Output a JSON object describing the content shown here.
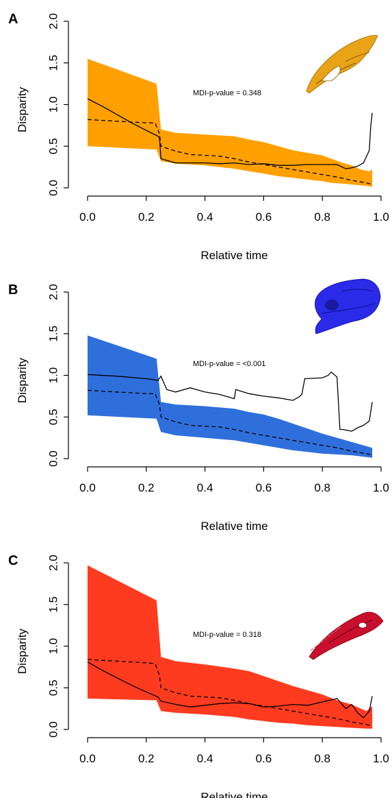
{
  "chart_data": [
    {
      "type": "line",
      "panel": "A",
      "xlabel": "Relative time",
      "ylabel": "Disparity",
      "xlim": [
        0,
        1
      ],
      "ylim": [
        0,
        2
      ],
      "xticks": [
        0.0,
        0.2,
        0.4,
        0.6,
        0.8,
        1.0
      ],
      "yticks": [
        0.0,
        0.5,
        1.0,
        1.5,
        2.0
      ],
      "xtick_labels": [
        "0.0",
        "0.2",
        "0.4",
        "0.6",
        "0.8",
        "1.0"
      ],
      "ytick_labels": [
        "0.0",
        "0.5",
        "1.0",
        "1.5",
        "2.0"
      ],
      "annotation": "MDI-p-value = 0.348",
      "band_color": "#FFA000",
      "skull_color": "#E8A317",
      "band": {
        "x": [
          0.0,
          0.235,
          0.25,
          0.3,
          0.4,
          0.5,
          0.55,
          0.6,
          0.65,
          0.7,
          0.75,
          0.8,
          0.83,
          0.87,
          0.9,
          0.93,
          0.96,
          0.97
        ],
        "upper": [
          1.55,
          1.25,
          0.7,
          0.66,
          0.64,
          0.62,
          0.58,
          0.55,
          0.5,
          0.45,
          0.42,
          0.39,
          0.35,
          0.3,
          0.27,
          0.22,
          0.2,
          0.22
        ],
        "lower": [
          0.5,
          0.46,
          0.32,
          0.29,
          0.27,
          0.23,
          0.2,
          0.17,
          0.14,
          0.12,
          0.1,
          0.08,
          0.06,
          0.05,
          0.04,
          0.03,
          0.02,
          0.01
        ]
      },
      "observed": {
        "x": [
          0.0,
          0.05,
          0.1,
          0.15,
          0.2,
          0.24,
          0.245,
          0.25,
          0.3,
          0.35,
          0.4,
          0.45,
          0.5,
          0.55,
          0.6,
          0.65,
          0.7,
          0.75,
          0.8,
          0.85,
          0.88,
          0.9,
          0.92,
          0.94,
          0.96,
          0.965,
          0.97
        ],
        "y": [
          1.07,
          0.98,
          0.88,
          0.78,
          0.69,
          0.62,
          0.6,
          0.35,
          0.3,
          0.3,
          0.3,
          0.29,
          0.3,
          0.28,
          0.29,
          0.27,
          0.27,
          0.28,
          0.28,
          0.28,
          0.23,
          0.24,
          0.26,
          0.3,
          0.45,
          0.75,
          0.9
        ]
      },
      "expected": {
        "x": [
          0.0,
          0.05,
          0.1,
          0.15,
          0.2,
          0.23,
          0.245,
          0.25,
          0.3,
          0.35,
          0.4,
          0.45,
          0.5,
          0.55,
          0.6,
          0.65,
          0.7,
          0.75,
          0.8,
          0.85,
          0.9,
          0.95,
          0.97
        ],
        "y": [
          0.82,
          0.81,
          0.8,
          0.79,
          0.78,
          0.78,
          0.65,
          0.5,
          0.44,
          0.4,
          0.39,
          0.38,
          0.35,
          0.31,
          0.28,
          0.25,
          0.22,
          0.19,
          0.16,
          0.13,
          0.09,
          0.06,
          0.04
        ]
      }
    },
    {
      "type": "line",
      "panel": "B",
      "xlabel": "Relative time",
      "ylabel": "Disparity",
      "xlim": [
        0,
        1
      ],
      "ylim": [
        0,
        2
      ],
      "xticks": [
        0.0,
        0.2,
        0.4,
        0.6,
        0.8,
        1.0
      ],
      "yticks": [
        0.0,
        0.5,
        1.0,
        1.5,
        2.0
      ],
      "xtick_labels": [
        "0.0",
        "0.2",
        "0.4",
        "0.6",
        "0.8",
        "1.0"
      ],
      "ytick_labels": [
        "0.0",
        "0.5",
        "1.0",
        "1.5",
        "2.0"
      ],
      "annotation": "MDI-p-value = <0.001",
      "band_color": "#2F6FDB",
      "skull_color": "#2A2AE8",
      "band": {
        "x": [
          0.0,
          0.235,
          0.25,
          0.3,
          0.4,
          0.5,
          0.55,
          0.6,
          0.65,
          0.7,
          0.75,
          0.8,
          0.85,
          0.9,
          0.95,
          0.97
        ],
        "upper": [
          1.48,
          1.2,
          0.68,
          0.65,
          0.63,
          0.6,
          0.56,
          0.53,
          0.48,
          0.42,
          0.36,
          0.3,
          0.25,
          0.2,
          0.15,
          0.13
        ],
        "lower": [
          0.52,
          0.48,
          0.32,
          0.28,
          0.25,
          0.22,
          0.19,
          0.16,
          0.13,
          0.1,
          0.08,
          0.06,
          0.05,
          0.04,
          0.02,
          0.01
        ]
      },
      "observed": {
        "x": [
          0.0,
          0.1,
          0.2,
          0.24,
          0.25,
          0.27,
          0.3,
          0.35,
          0.4,
          0.45,
          0.5,
          0.505,
          0.55,
          0.6,
          0.65,
          0.7,
          0.72,
          0.73,
          0.74,
          0.8,
          0.82,
          0.83,
          0.85,
          0.86,
          0.87,
          0.9,
          0.92,
          0.94,
          0.96,
          0.97
        ],
        "y": [
          1.01,
          0.99,
          0.96,
          0.94,
          0.99,
          0.83,
          0.8,
          0.85,
          0.8,
          0.77,
          0.72,
          0.83,
          0.78,
          0.75,
          0.73,
          0.7,
          0.74,
          0.77,
          0.96,
          0.97,
          1.0,
          1.04,
          0.98,
          0.35,
          0.35,
          0.33,
          0.37,
          0.4,
          0.45,
          0.68
        ]
      },
      "expected": {
        "x": [
          0.0,
          0.05,
          0.1,
          0.15,
          0.2,
          0.23,
          0.245,
          0.25,
          0.3,
          0.35,
          0.4,
          0.45,
          0.5,
          0.55,
          0.6,
          0.65,
          0.7,
          0.75,
          0.8,
          0.85,
          0.9,
          0.95,
          0.97
        ],
        "y": [
          0.82,
          0.81,
          0.8,
          0.79,
          0.78,
          0.78,
          0.65,
          0.5,
          0.44,
          0.4,
          0.39,
          0.38,
          0.35,
          0.31,
          0.28,
          0.25,
          0.22,
          0.19,
          0.16,
          0.13,
          0.09,
          0.06,
          0.04
        ]
      }
    },
    {
      "type": "line",
      "panel": "C",
      "xlabel": "Relative time",
      "ylabel": "Disparity",
      "xlim": [
        0,
        1
      ],
      "ylim": [
        0,
        2
      ],
      "xticks": [
        0.0,
        0.2,
        0.4,
        0.6,
        0.8,
        1.0
      ],
      "yticks": [
        0.0,
        0.5,
        1.0,
        1.5,
        2.0
      ],
      "xtick_labels": [
        "0.0",
        "0.2",
        "0.4",
        "0.6",
        "0.8",
        "1.0"
      ],
      "ytick_labels": [
        "0.0",
        "0.5",
        "1.0",
        "1.5",
        "2.0"
      ],
      "annotation": "MDI-p-value = 0.318",
      "band_color": "#FF3B1F",
      "skull_color": "#C8102E",
      "band": {
        "x": [
          0.0,
          0.235,
          0.25,
          0.3,
          0.4,
          0.5,
          0.55,
          0.6,
          0.65,
          0.7,
          0.75,
          0.8,
          0.85,
          0.9,
          0.95,
          0.97
        ],
        "upper": [
          1.97,
          1.55,
          0.87,
          0.82,
          0.78,
          0.73,
          0.7,
          0.64,
          0.58,
          0.52,
          0.47,
          0.42,
          0.35,
          0.3,
          0.22,
          0.28
        ],
        "lower": [
          0.37,
          0.35,
          0.22,
          0.2,
          0.18,
          0.15,
          0.12,
          0.1,
          0.08,
          0.07,
          0.05,
          0.04,
          0.03,
          0.02,
          0.01,
          0.01
        ]
      },
      "observed": {
        "x": [
          0.0,
          0.05,
          0.1,
          0.15,
          0.2,
          0.24,
          0.25,
          0.3,
          0.35,
          0.4,
          0.45,
          0.5,
          0.55,
          0.6,
          0.65,
          0.7,
          0.75,
          0.8,
          0.85,
          0.88,
          0.9,
          0.92,
          0.94,
          0.96,
          0.97
        ],
        "y": [
          0.81,
          0.71,
          0.62,
          0.53,
          0.45,
          0.39,
          0.34,
          0.3,
          0.27,
          0.29,
          0.31,
          0.32,
          0.31,
          0.27,
          0.28,
          0.3,
          0.29,
          0.33,
          0.37,
          0.25,
          0.3,
          0.2,
          0.14,
          0.22,
          0.4
        ]
      },
      "expected": {
        "x": [
          0.0,
          0.05,
          0.1,
          0.15,
          0.2,
          0.23,
          0.245,
          0.25,
          0.3,
          0.35,
          0.4,
          0.45,
          0.5,
          0.55,
          0.6,
          0.65,
          0.7,
          0.75,
          0.8,
          0.85,
          0.9,
          0.95,
          0.97
        ],
        "y": [
          0.84,
          0.83,
          0.82,
          0.81,
          0.8,
          0.79,
          0.65,
          0.5,
          0.44,
          0.4,
          0.39,
          0.38,
          0.35,
          0.31,
          0.28,
          0.25,
          0.22,
          0.19,
          0.16,
          0.13,
          0.09,
          0.06,
          0.04
        ]
      }
    }
  ]
}
